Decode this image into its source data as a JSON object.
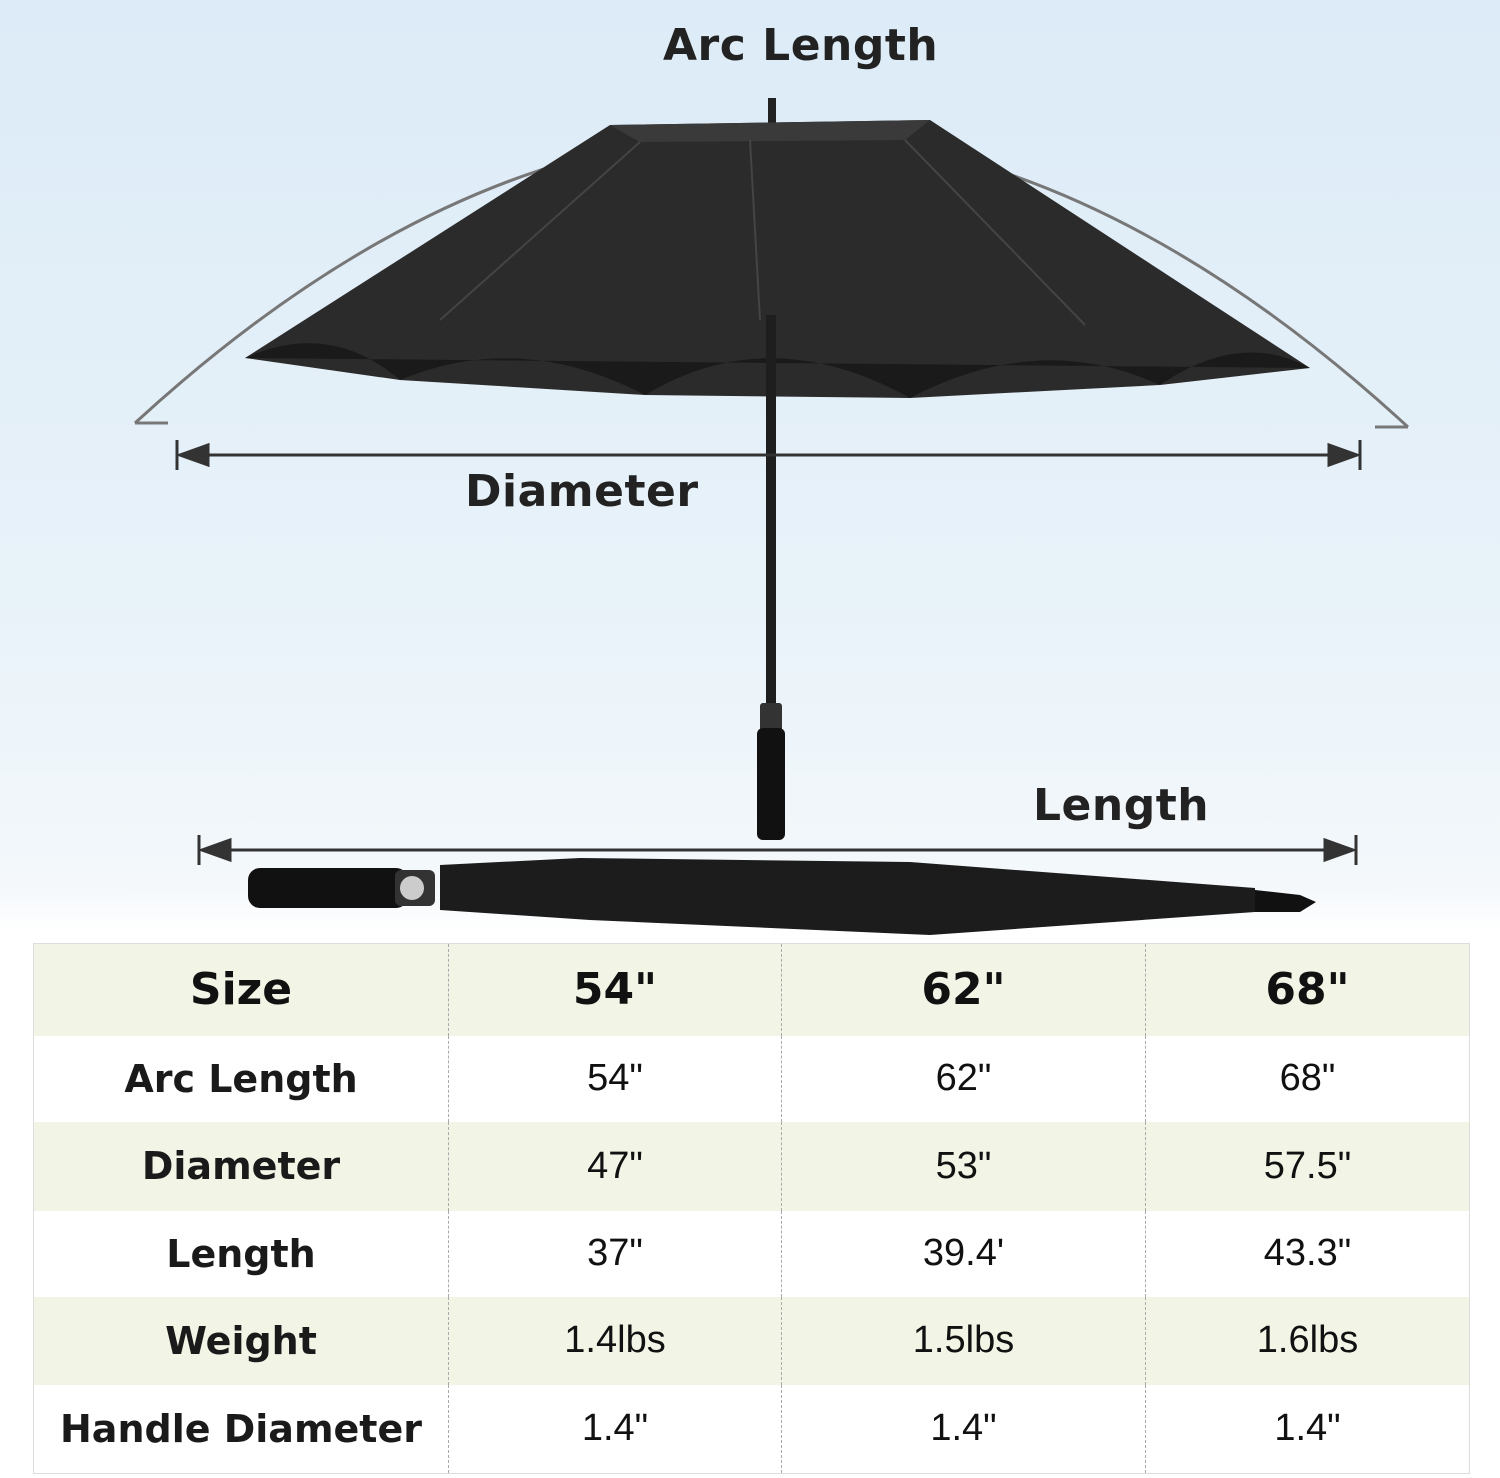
{
  "labels": {
    "arc_length": "Arc Length",
    "diameter": "Diameter",
    "length": "Length"
  },
  "colors": {
    "canopy": "#2a2a2a",
    "table_stripe": "#f2f4e6",
    "background_top": "#dcebf7"
  },
  "table": {
    "header": [
      "Size",
      "54\"",
      "62\"",
      "68\""
    ],
    "rows": [
      {
        "label": "Arc Length",
        "values": [
          "54\"",
          "62\"",
          "68\""
        ]
      },
      {
        "label": "Diameter",
        "values": [
          "47\"",
          "53\"",
          "57.5\""
        ]
      },
      {
        "label": "Length",
        "values": [
          "37\"",
          "39.4'",
          "43.3\""
        ]
      },
      {
        "label": "Weight",
        "values": [
          "1.4lbs",
          "1.5lbs",
          "1.6lbs"
        ]
      },
      {
        "label": "Handle Diameter",
        "values": [
          "1.4\"",
          "1.4\"",
          "1.4\""
        ]
      }
    ]
  }
}
